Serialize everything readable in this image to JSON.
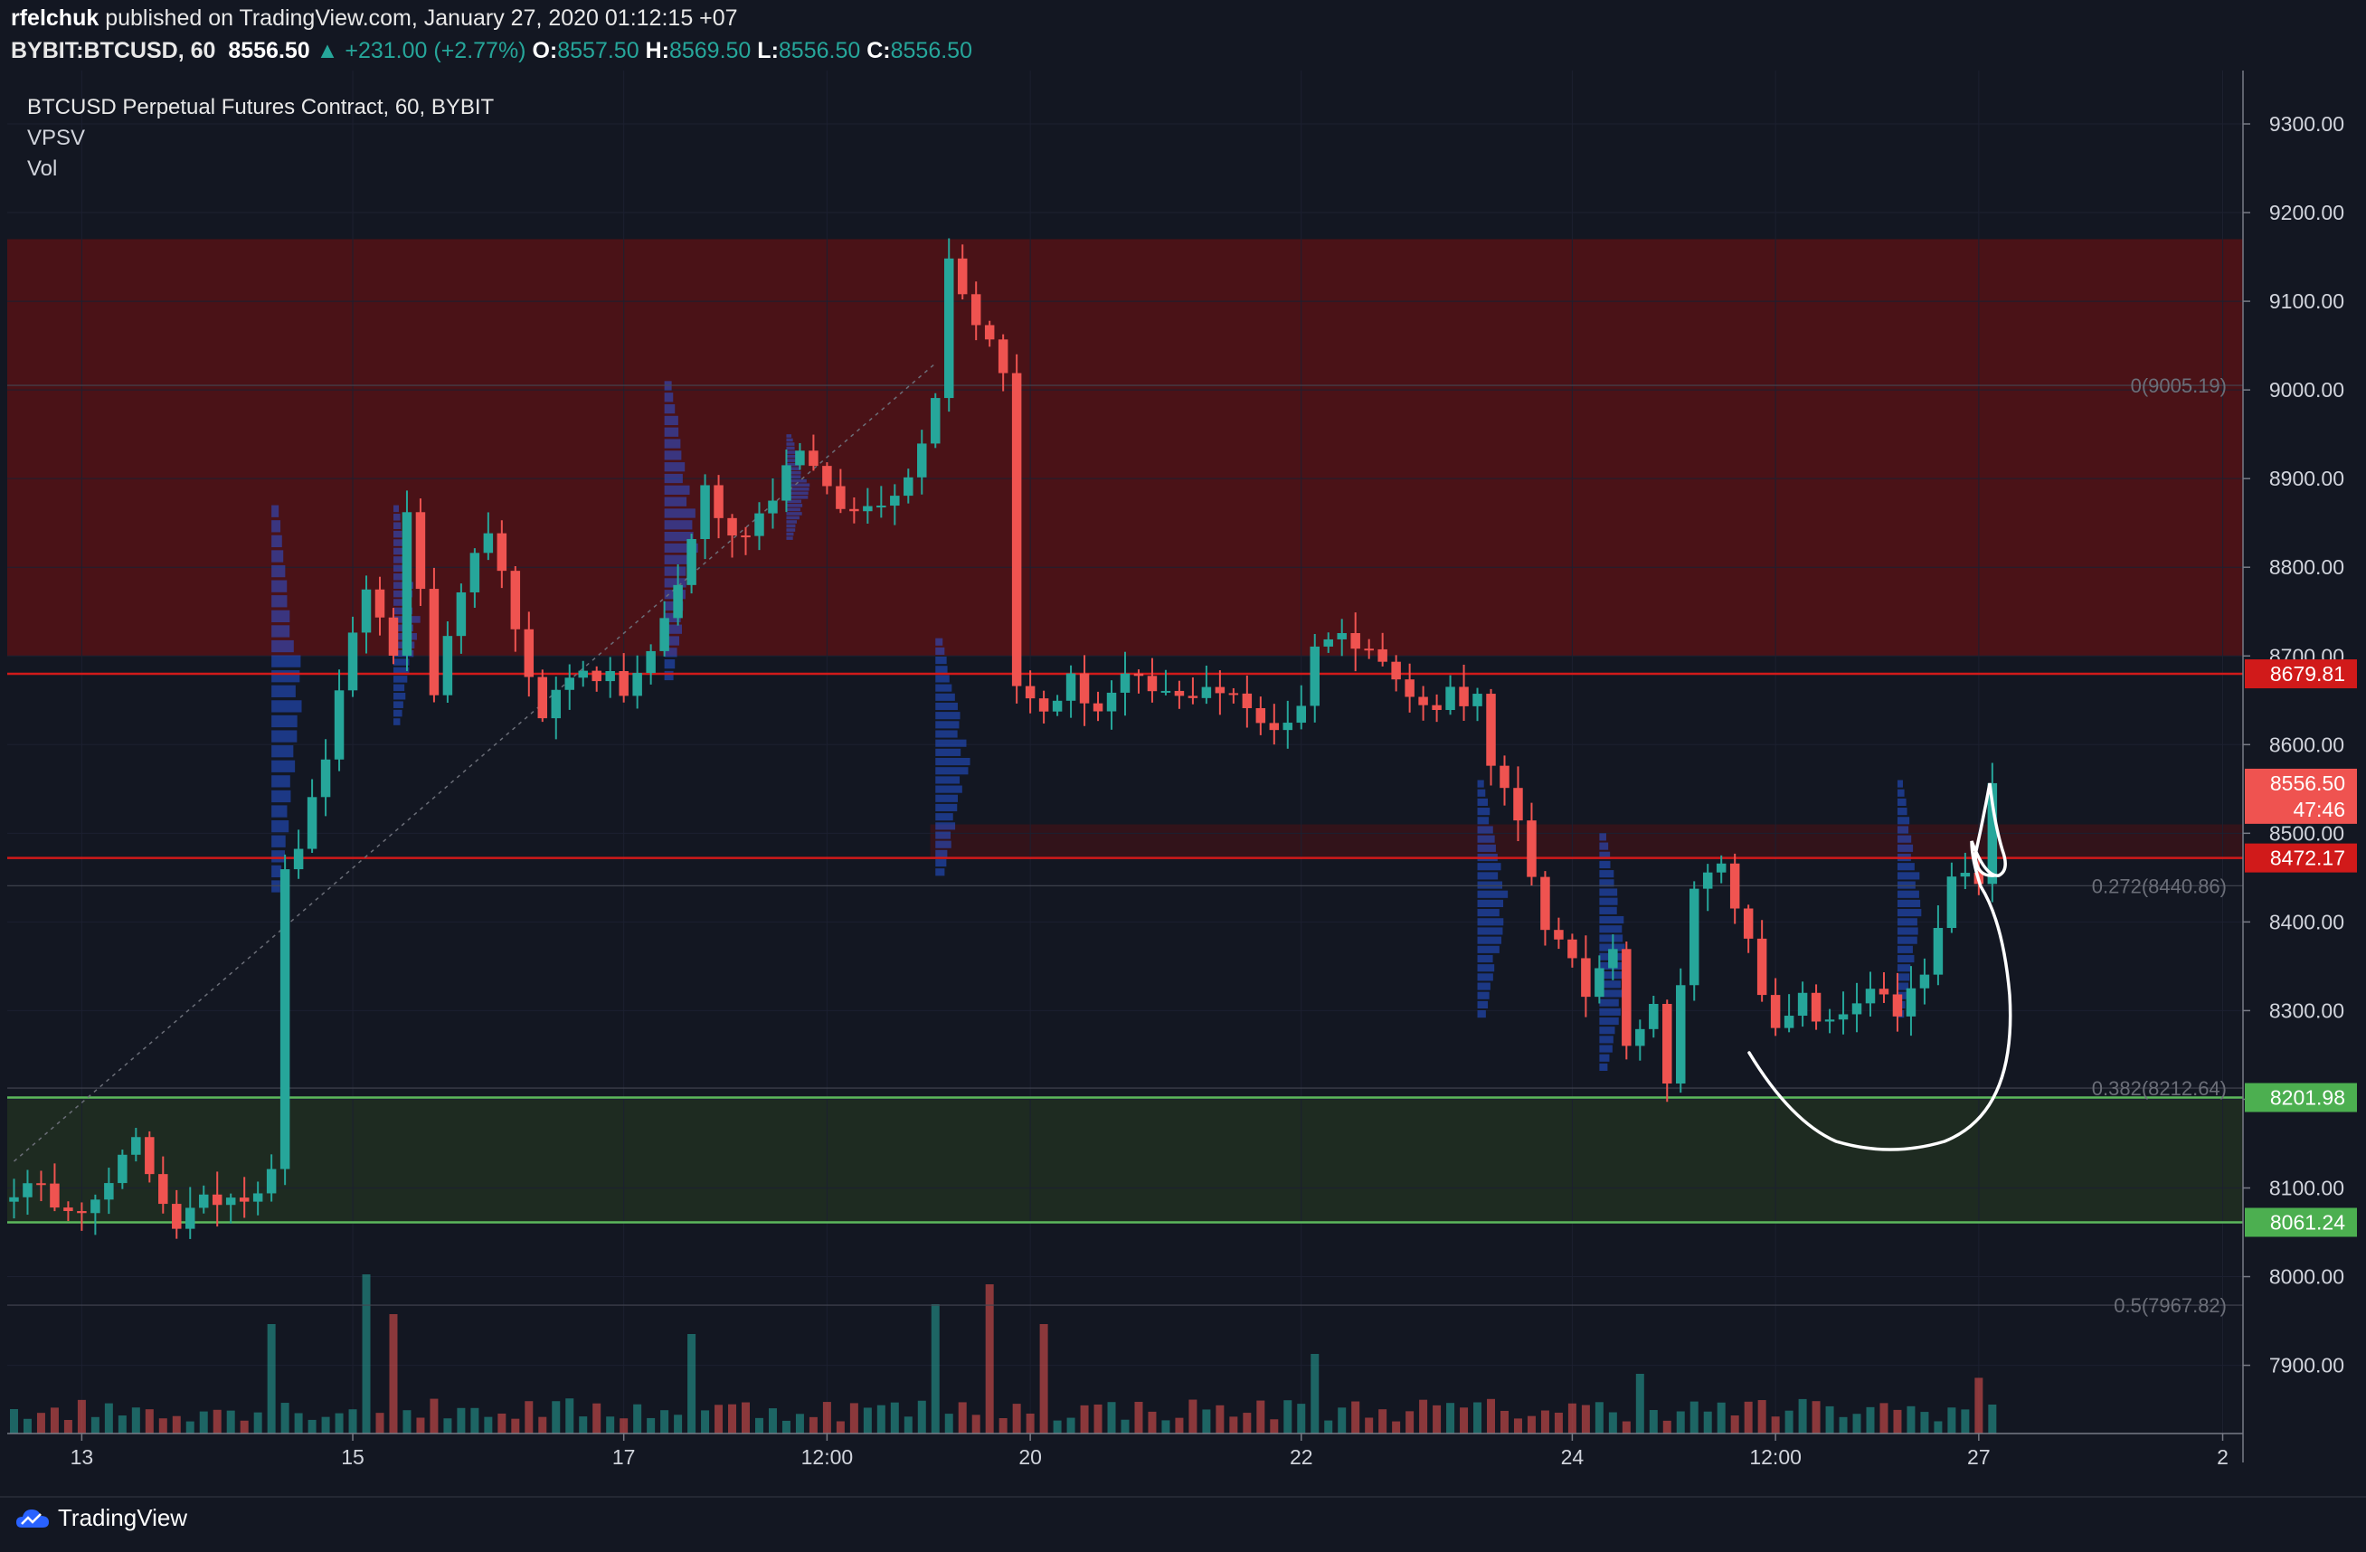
{
  "header": {
    "publisher": "rfelchuk",
    "published_text": "published on TradingView.com, January 27, 2020 01:12:15 +07",
    "symbol": "BYBIT:BTCUSD, 60",
    "last": "8556.50",
    "change_arrow": "▲",
    "change": "+231.00 (+2.77%)",
    "o_label": "O:",
    "o": "8557.50",
    "h_label": "H:",
    "h": "8569.50",
    "l_label": "L:",
    "l": "8556.50",
    "c_label": "C:",
    "c": "8556.50"
  },
  "indicators": {
    "title": "BTCUSD Perpetual Futures Contract, 60, BYBIT",
    "items": [
      "VPSV",
      "Vol"
    ]
  },
  "footer": {
    "brand": "TradingView"
  },
  "colors": {
    "background": "#131722",
    "up": "#26a69a",
    "down": "#ef5350",
    "resistance_zone": "#4a1217",
    "support_zone": "#1e2b21",
    "red_line": "#d11a1a",
    "green_line": "#5cb85c",
    "volume_profile": "#2962ff"
  },
  "chart_data": {
    "type": "candlestick",
    "title": "BTCUSD Perpetual Futures Contract, 60, BYBIT",
    "ylim": [
      7820,
      9350
    ],
    "y_ticks": [
      "9300.00",
      "9200.00",
      "9100.00",
      "9000.00",
      "8900.00",
      "8800.00",
      "8700.00",
      "8600.00",
      "8500.00",
      "8400.00",
      "8300.00",
      "8200.00",
      "8100.00",
      "8000.00",
      "7900.00"
    ],
    "x_ticks": [
      {
        "label": "13",
        "i": 5
      },
      {
        "label": "15",
        "i": 25
      },
      {
        "label": "17",
        "i": 45
      },
      {
        "label": "12:00",
        "i": 60
      },
      {
        "label": "20",
        "i": 75
      },
      {
        "label": "22",
        "i": 95
      },
      {
        "label": "24",
        "i": 115
      },
      {
        "label": "12:00",
        "i": 130
      },
      {
        "label": "27",
        "i": 145
      },
      {
        "label": "2",
        "i": 163
      }
    ],
    "bars_total": 165,
    "anchors": [
      [
        0,
        8100
      ],
      [
        6,
        8080
      ],
      [
        9,
        8150
      ],
      [
        12,
        8060
      ],
      [
        15,
        8090
      ],
      [
        18,
        8100
      ],
      [
        19,
        8130
      ],
      [
        20,
        8450
      ],
      [
        22,
        8530
      ],
      [
        24,
        8650
      ],
      [
        26,
        8780
      ],
      [
        28,
        8700
      ],
      [
        29,
        8870
      ],
      [
        31,
        8660
      ],
      [
        33,
        8760
      ],
      [
        35,
        8850
      ],
      [
        37,
        8720
      ],
      [
        39,
        8640
      ],
      [
        42,
        8690
      ],
      [
        45,
        8660
      ],
      [
        47,
        8700
      ],
      [
        49,
        8780
      ],
      [
        51,
        8890
      ],
      [
        53,
        8830
      ],
      [
        55,
        8860
      ],
      [
        58,
        8940
      ],
      [
        60,
        8880
      ],
      [
        62,
        8860
      ],
      [
        64,
        8880
      ],
      [
        66,
        8900
      ],
      [
        68,
        9000
      ],
      [
        69,
        9150
      ],
      [
        71,
        9080
      ],
      [
        73,
        9030
      ],
      [
        74,
        8660
      ],
      [
        76,
        8640
      ],
      [
        78,
        8670
      ],
      [
        80,
        8640
      ],
      [
        82,
        8670
      ],
      [
        84,
        8660
      ],
      [
        86,
        8650
      ],
      [
        88,
        8670
      ],
      [
        90,
        8650
      ],
      [
        93,
        8620
      ],
      [
        95,
        8640
      ],
      [
        96,
        8720
      ],
      [
        98,
        8720
      ],
      [
        100,
        8720
      ],
      [
        102,
        8670
      ],
      [
        104,
        8640
      ],
      [
        106,
        8660
      ],
      [
        108,
        8650
      ],
      [
        109,
        8570
      ],
      [
        111,
        8510
      ],
      [
        113,
        8400
      ],
      [
        116,
        8320
      ],
      [
        118,
        8380
      ],
      [
        119,
        8270
      ],
      [
        121,
        8300
      ],
      [
        122,
        8230
      ],
      [
        124,
        8430
      ],
      [
        126,
        8470
      ],
      [
        127,
        8410
      ],
      [
        128,
        8390
      ],
      [
        130,
        8270
      ],
      [
        132,
        8310
      ],
      [
        134,
        8280
      ],
      [
        137,
        8330
      ],
      [
        139,
        8290
      ],
      [
        141,
        8340
      ],
      [
        143,
        8440
      ],
      [
        145,
        8450
      ],
      [
        146,
        8556.5
      ]
    ],
    "volume_spikes": [
      [
        19,
        0.55
      ],
      [
        26,
        0.8
      ],
      [
        28,
        0.6
      ],
      [
        50,
        0.5
      ],
      [
        68,
        0.65
      ],
      [
        72,
        0.75
      ],
      [
        76,
        0.55
      ],
      [
        96,
        0.4
      ],
      [
        120,
        0.3
      ],
      [
        145,
        0.28
      ]
    ],
    "price_labels": [
      {
        "value": 8679.81,
        "label": "8679.81",
        "color": "#d11a1a"
      },
      {
        "value": 8556.5,
        "label": "8556.50",
        "color": "#ef5350"
      },
      {
        "value": 8527.0,
        "label": "47:46",
        "color": "#ef5350"
      },
      {
        "value": 8472.17,
        "label": "8472.17",
        "color": "#d11a1a"
      },
      {
        "value": 8201.98,
        "label": "8201.98",
        "color": "#4caf50"
      },
      {
        "value": 8061.24,
        "label": "8061.24",
        "color": "#4caf50"
      }
    ],
    "horizontal_lines": [
      {
        "value": 8679.81,
        "color": "#d11a1a"
      },
      {
        "value": 8472.17,
        "color": "#d11a1a"
      },
      {
        "value": 8201.98,
        "color": "#5cb85c"
      },
      {
        "value": 8061.24,
        "color": "#5cb85c"
      }
    ],
    "zones": [
      {
        "from": 8700,
        "to": 9170,
        "color": "#4a1217"
      },
      {
        "from": 8061.24,
        "to": 8201.98,
        "color": "#1e2b21"
      }
    ],
    "fib_levels": [
      {
        "value": 9005.19,
        "label": "0(9005.19)"
      },
      {
        "value": 8440.86,
        "label": "0.272(8440.86)"
      },
      {
        "value": 8212.64,
        "label": "0.382(8212.64)"
      },
      {
        "value": 7967.82,
        "label": "0.5(7967.82)"
      }
    ]
  }
}
